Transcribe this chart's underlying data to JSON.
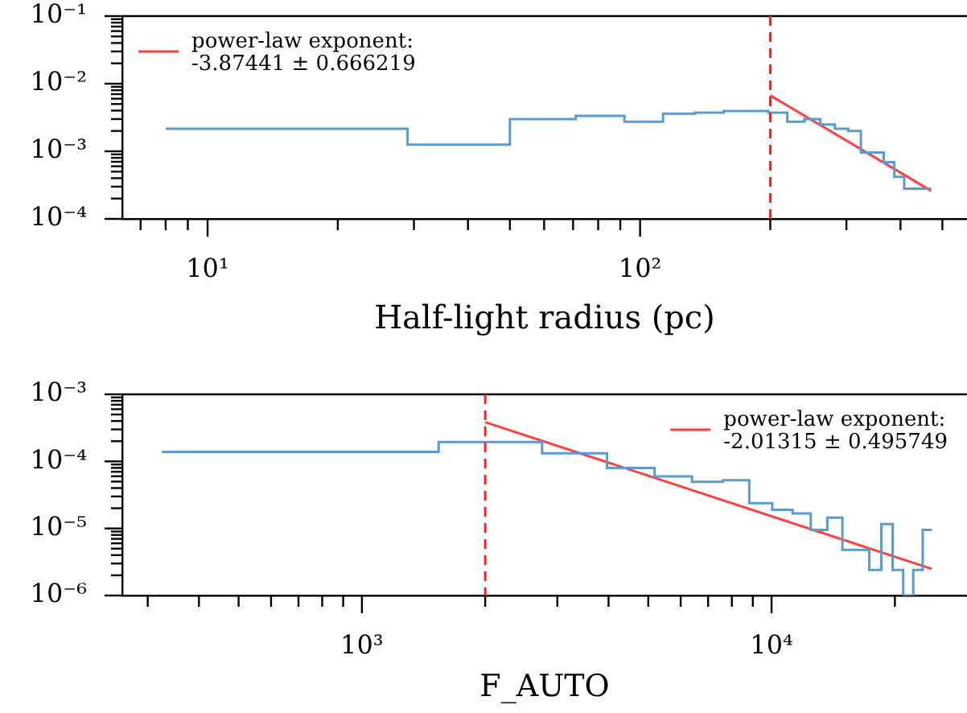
{
  "chart_data": [
    {
      "type": "histogram",
      "xlabel": "Half-light radius (pc)",
      "log": "xy",
      "legend": "top left",
      "xlim": [
        6.35,
        570
      ],
      "ylim": [
        0.0001,
        0.1
      ],
      "xticks": [
        {
          "value": 7,
          "label": null
        },
        {
          "value": 8,
          "label": null
        },
        {
          "value": 9,
          "label": null
        },
        {
          "value": 10,
          "label": "10¹"
        },
        {
          "value": 20,
          "label": null
        },
        {
          "value": 30,
          "label": null
        },
        {
          "value": 40,
          "label": null
        },
        {
          "value": 50,
          "label": null
        },
        {
          "value": 60,
          "label": null
        },
        {
          "value": 70,
          "label": null
        },
        {
          "value": 80,
          "label": null
        },
        {
          "value": 90,
          "label": null
        },
        {
          "value": 100,
          "label": "10²"
        },
        {
          "value": 200,
          "label": null
        },
        {
          "value": 300,
          "label": null
        },
        {
          "value": 400,
          "label": null
        },
        {
          "value": 500,
          "label": null
        }
      ],
      "yticks": [
        {
          "value": 0.0001,
          "label": "10⁻⁴"
        },
        {
          "value": 0.0002,
          "label": null
        },
        {
          "value": 0.0003,
          "label": null
        },
        {
          "value": 0.0004,
          "label": null
        },
        {
          "value": 0.0005,
          "label": null
        },
        {
          "value": 0.0006,
          "label": null
        },
        {
          "value": 0.0007,
          "label": null
        },
        {
          "value": 0.0008,
          "label": null
        },
        {
          "value": 0.0009,
          "label": null
        },
        {
          "value": 0.001,
          "label": "10⁻³"
        },
        {
          "value": 0.002,
          "label": null
        },
        {
          "value": 0.003,
          "label": null
        },
        {
          "value": 0.004,
          "label": null
        },
        {
          "value": 0.005,
          "label": null
        },
        {
          "value": 0.006,
          "label": null
        },
        {
          "value": 0.007,
          "label": null
        },
        {
          "value": 0.008,
          "label": null
        },
        {
          "value": 0.009,
          "label": null
        },
        {
          "value": 0.01,
          "label": "10⁻²"
        },
        {
          "value": 0.02,
          "label": null
        },
        {
          "value": 0.03,
          "label": null
        },
        {
          "value": 0.04,
          "label": null
        },
        {
          "value": 0.05,
          "label": null
        },
        {
          "value": 0.06,
          "label": null
        },
        {
          "value": 0.07,
          "label": null
        },
        {
          "value": 0.08,
          "label": null
        },
        {
          "value": 0.09,
          "label": null
        },
        {
          "value": 0.1,
          "label": "10⁻¹"
        }
      ],
      "bins": [
        8,
        29,
        50,
        71,
        92,
        113,
        134,
        156,
        177,
        198,
        219,
        240,
        261,
        282,
        303,
        324,
        345,
        366,
        387,
        408,
        429,
        450,
        471
      ],
      "series": [
        {
          "type": "histogram",
          "color": "#5b9bd0",
          "values": [
            0.00215,
            0.00125,
            0.003,
            0.00334,
            0.00273,
            0.00359,
            0.00373,
            0.00394,
            0.00394,
            0.00373,
            0.00273,
            0.003,
            0.00249,
            0.00215,
            0.002,
            0.00096,
            0.00096,
            0.00069,
            0.00042,
            0.00028,
            0.00028,
            0.00028
          ]
        },
        {
          "type": "line",
          "name": "power-law exponent:\n-3.87441 ± 0.666219",
          "color": "#ff4040",
          "x": [
            200,
            471
          ],
          "values": [
            0.0067,
            0.00026
          ]
        }
      ],
      "ref_lines": [
        {
          "axis": "x",
          "value": 200,
          "color": "#ff2020",
          "line_style": "dashed"
        }
      ]
    },
    {
      "type": "histogram",
      "xlabel": "F_AUTO",
      "log": "xy",
      "legend": "top right",
      "xlim": [
        260,
        30000
      ],
      "ylim": [
        1e-06,
        0.001
      ],
      "xticks": [
        {
          "value": 300,
          "label": null
        },
        {
          "value": 400,
          "label": null
        },
        {
          "value": 500,
          "label": null
        },
        {
          "value": 600,
          "label": null
        },
        {
          "value": 700,
          "label": null
        },
        {
          "value": 800,
          "label": null
        },
        {
          "value": 900,
          "label": null
        },
        {
          "value": 1000,
          "label": "10³"
        },
        {
          "value": 2000,
          "label": null
        },
        {
          "value": 3000,
          "label": null
        },
        {
          "value": 4000,
          "label": null
        },
        {
          "value": 5000,
          "label": null
        },
        {
          "value": 6000,
          "label": null
        },
        {
          "value": 7000,
          "label": null
        },
        {
          "value": 8000,
          "label": null
        },
        {
          "value": 9000,
          "label": null
        },
        {
          "value": 10000,
          "label": "10⁴"
        },
        {
          "value": 20000,
          "label": null
        }
      ],
      "yticks": [
        {
          "value": 1e-06,
          "label": "10⁻⁶"
        },
        {
          "value": 2e-06,
          "label": null
        },
        {
          "value": 3e-06,
          "label": null
        },
        {
          "value": 4e-06,
          "label": null
        },
        {
          "value": 5e-06,
          "label": null
        },
        {
          "value": 6e-06,
          "label": null
        },
        {
          "value": 7e-06,
          "label": null
        },
        {
          "value": 8e-06,
          "label": null
        },
        {
          "value": 9e-06,
          "label": null
        },
        {
          "value": 1e-05,
          "label": "10⁻⁵"
        },
        {
          "value": 2e-05,
          "label": null
        },
        {
          "value": 3e-05,
          "label": null
        },
        {
          "value": 4e-05,
          "label": null
        },
        {
          "value": 5e-05,
          "label": null
        },
        {
          "value": 6e-05,
          "label": null
        },
        {
          "value": 7e-05,
          "label": null
        },
        {
          "value": 8e-05,
          "label": null
        },
        {
          "value": 9e-05,
          "label": null
        },
        {
          "value": 0.0001,
          "label": "10⁻⁴"
        },
        {
          "value": 0.0002,
          "label": null
        },
        {
          "value": 0.0003,
          "label": null
        },
        {
          "value": 0.0004,
          "label": null
        },
        {
          "value": 0.0005,
          "label": null
        },
        {
          "value": 0.0006,
          "label": null
        },
        {
          "value": 0.0007,
          "label": null
        },
        {
          "value": 0.0008,
          "label": null
        },
        {
          "value": 0.0009,
          "label": null
        },
        {
          "value": 0.001,
          "label": "10⁻³"
        }
      ],
      "bins": [
        325,
        1539,
        2753,
        3967,
        5181,
        6395,
        7609,
        8823,
        10037,
        11251,
        12465,
        13679,
        14893,
        16107,
        17321,
        18535,
        19749,
        20963,
        22177,
        23391,
        24605
      ],
      "series": [
        {
          "type": "histogram",
          "color": "#5b9bd0",
          "values": [
            0.000139,
            0.000194,
            0.000132,
            8e-05,
            5.97e-05,
            4.97e-05,
            5.25e-05,
            2.38e-05,
            1.9e-05,
            1.67e-05,
            9.5e-06,
            1.45e-05,
            4.8e-06,
            4.8e-06,
            2.4e-06,
            1.16e-05,
            2.4e-06,
            null,
            2.4e-06,
            9.5e-06
          ]
        },
        {
          "type": "line",
          "name": "power-law exponent:\n-2.01315 ± 0.495749",
          "color": "#ff4040",
          "x": [
            2000,
            24600
          ],
          "values": [
            0.000384,
            2.5e-06
          ]
        }
      ],
      "ref_lines": [
        {
          "axis": "x",
          "value": 2000,
          "color": "#ff2020",
          "line_style": "dashed"
        }
      ]
    }
  ]
}
